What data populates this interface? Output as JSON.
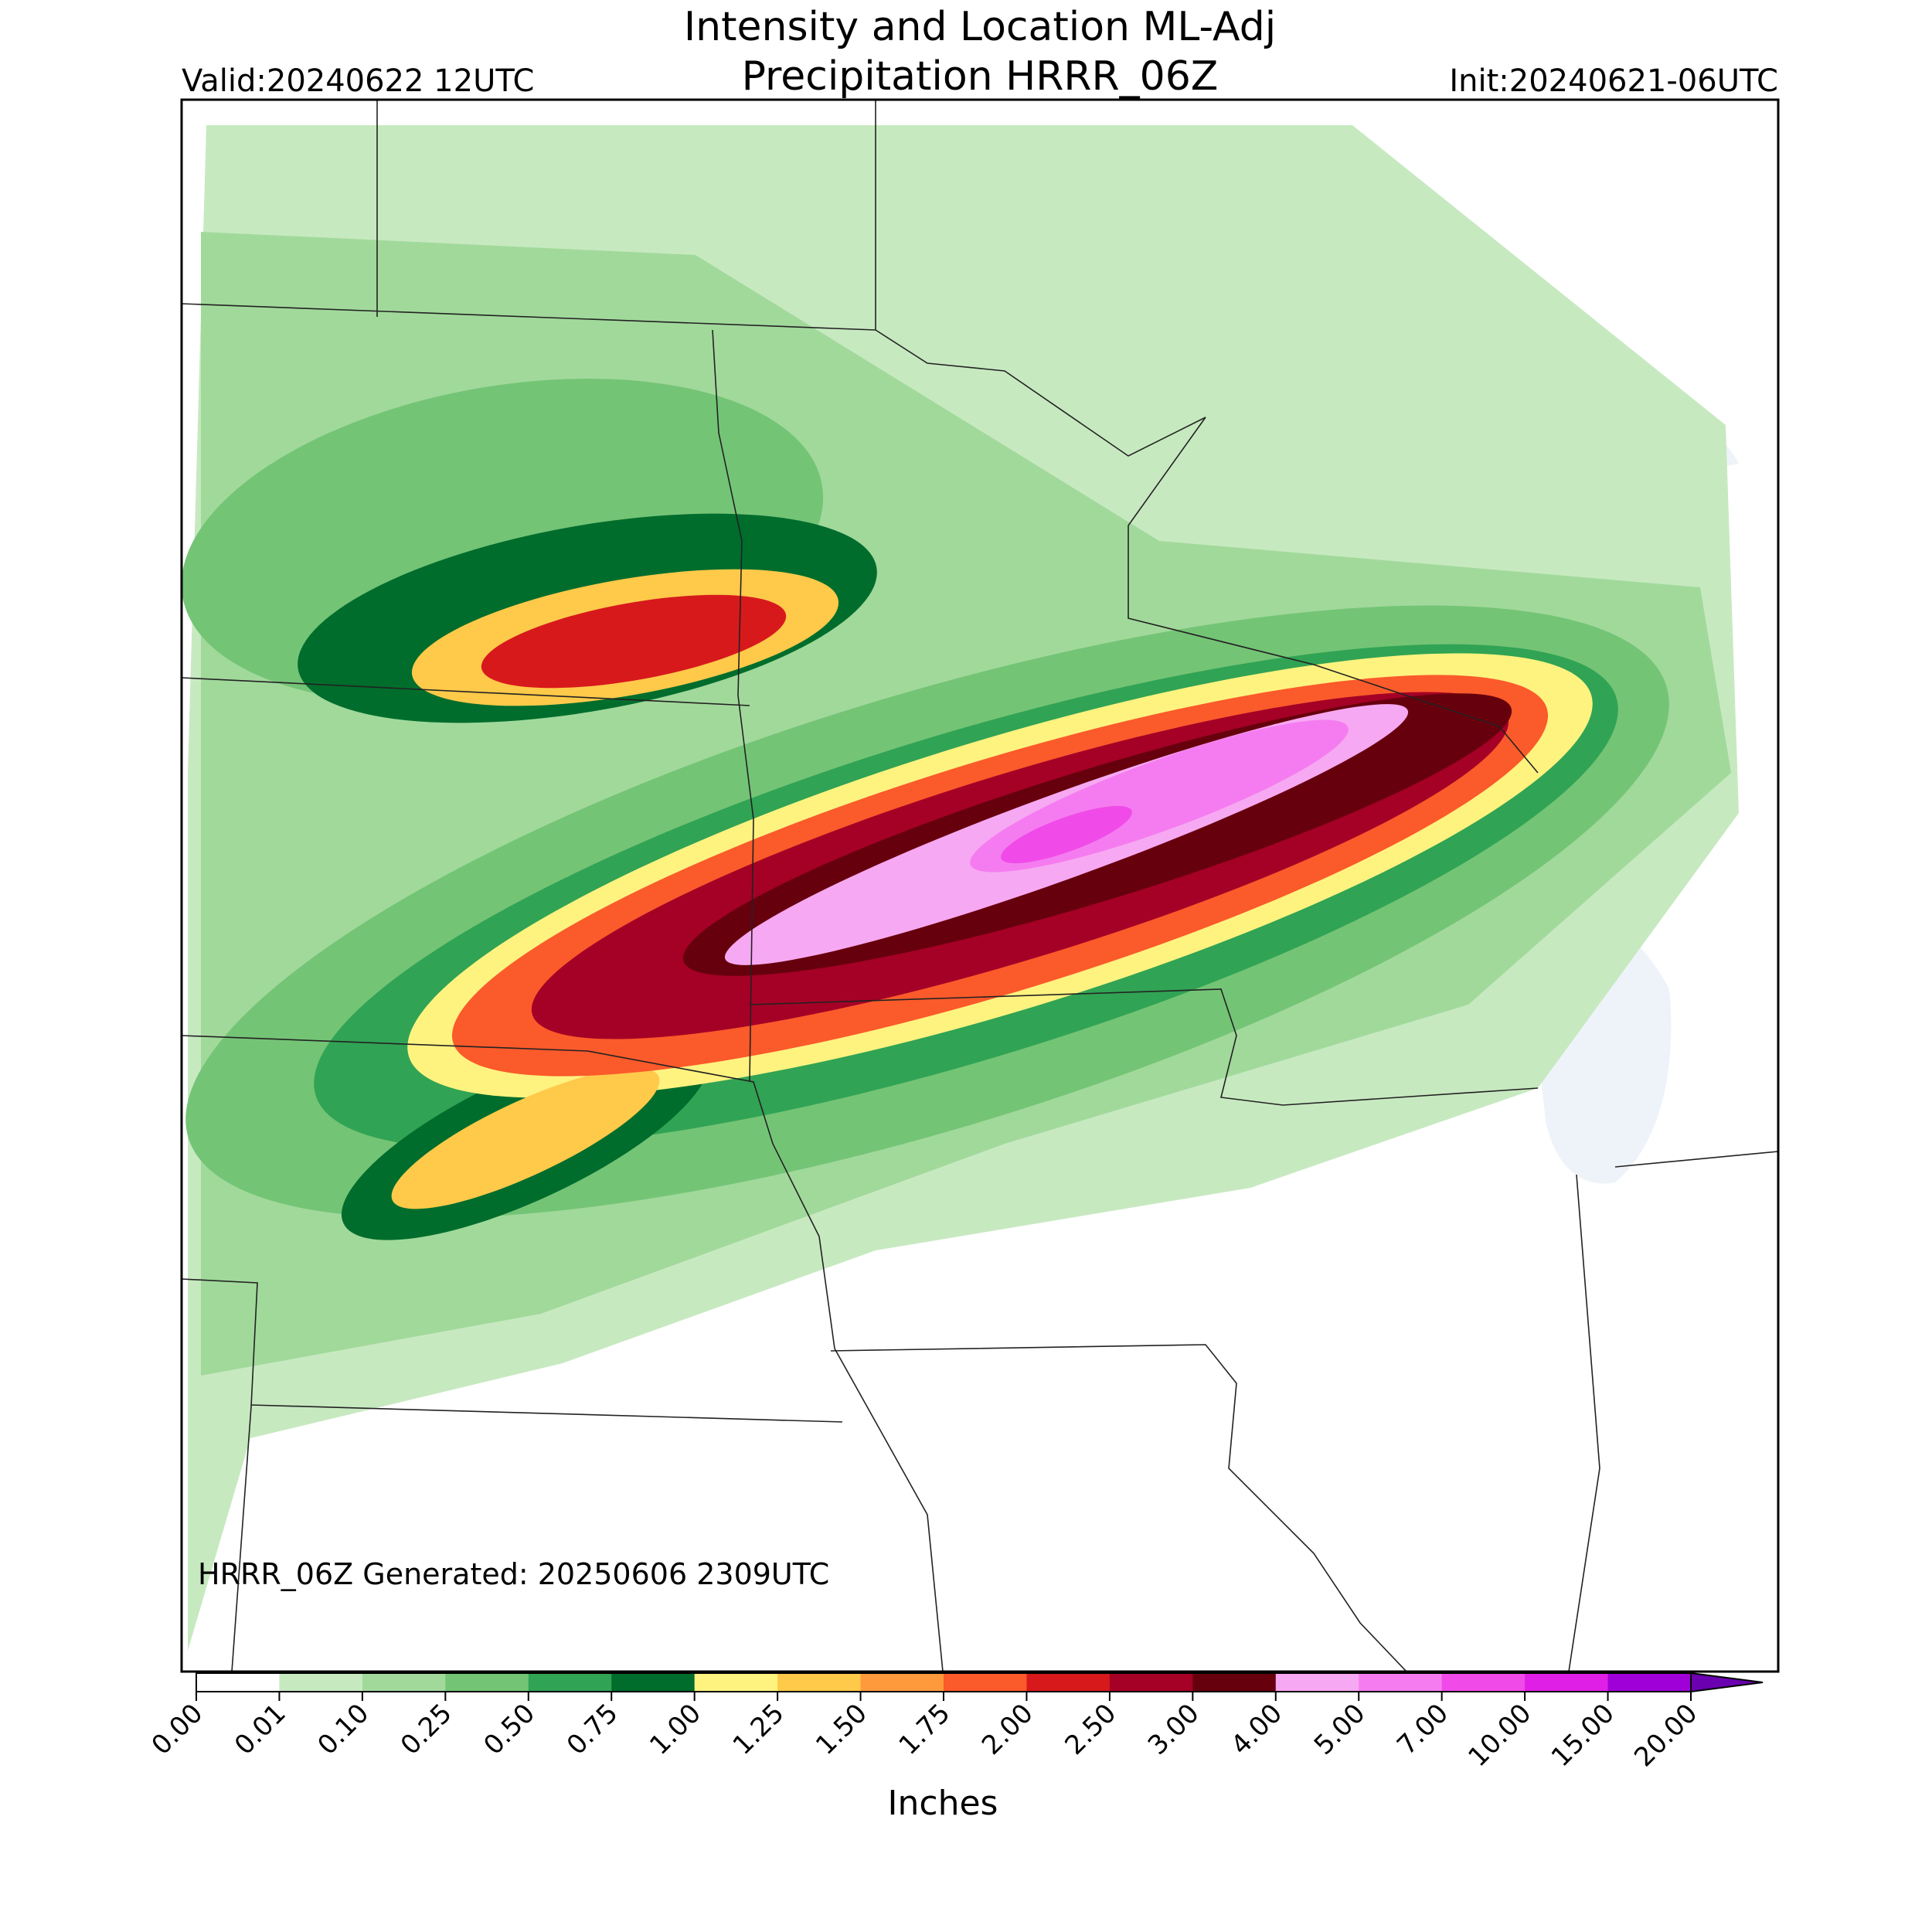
{
  "header": {
    "title_line1": "Intensity and Location ML-Adj",
    "title_line2": "Precipitation HRRR_06Z",
    "valid": "Valid:20240622 12UTC",
    "init": "Init:20240621-06UTC"
  },
  "map": {
    "footer_note": "HRRR_06Z Generated: 20250606 2309UTC"
  },
  "colorbar": {
    "label": "Inches",
    "tick_labels": [
      "0.00",
      "0.01",
      "0.10",
      "0.25",
      "0.50",
      "0.75",
      "1.00",
      "1.25",
      "1.50",
      "1.75",
      "2.00",
      "2.50",
      "3.00",
      "4.00",
      "5.00",
      "7.00",
      "10.00",
      "15.00",
      "20.00"
    ],
    "colors": [
      "#ffffff",
      "#c7e9c0",
      "#a1d99b",
      "#74c476",
      "#31a354",
      "#006d2c",
      "#fff380",
      "#ffc94a",
      "#ff9a3c",
      "#fb5a2b",
      "#d7191c",
      "#a50026",
      "#67000d",
      "#f7a8f2",
      "#f57cf0",
      "#f04be8",
      "#e01fe6",
      "#a000d8",
      "#6a00b0"
    ]
  }
}
